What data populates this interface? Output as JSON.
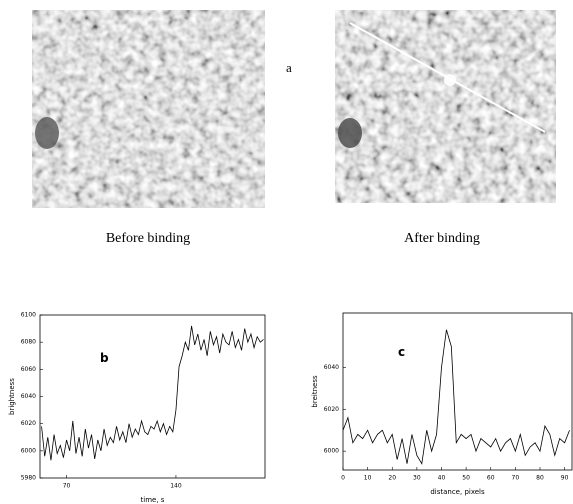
{
  "figure": {
    "label": "a",
    "captions": [
      "Before binding",
      "After binding"
    ]
  },
  "chart_data": [
    {
      "type": "line",
      "annotation": "b",
      "xlabel": "time, s",
      "ylabel": "brightness",
      "xlim": [
        53,
        197
      ],
      "ylim": [
        5980,
        6100
      ],
      "xticks": [
        70,
        140
      ],
      "yticks": [
        5980,
        6000,
        6020,
        6040,
        6060,
        6080,
        6100
      ],
      "color": "#000000",
      "x": [
        54,
        56,
        58,
        60,
        62,
        64,
        66,
        68,
        70,
        72,
        74,
        76,
        78,
        80,
        82,
        84,
        86,
        88,
        90,
        92,
        94,
        96,
        98,
        100,
        102,
        104,
        106,
        108,
        110,
        112,
        114,
        116,
        118,
        120,
        122,
        124,
        126,
        128,
        130,
        132,
        134,
        136,
        138,
        140,
        142,
        144,
        146,
        148,
        150,
        152,
        154,
        156,
        158,
        160,
        162,
        164,
        166,
        168,
        170,
        172,
        174,
        176,
        178,
        180,
        182,
        184,
        186,
        188,
        190,
        192,
        194,
        196
      ],
      "values": [
        6018,
        5996,
        6010,
        5993,
        6012,
        5998,
        6004,
        5995,
        6008,
        6000,
        6022,
        5998,
        6010,
        5996,
        6016,
        6002,
        6012,
        5994,
        6008,
        6000,
        6016,
        6004,
        6010,
        6006,
        6018,
        6008,
        6014,
        6006,
        6020,
        6010,
        6016,
        6012,
        6022,
        6014,
        6012,
        6018,
        6016,
        6022,
        6014,
        6020,
        6012,
        6018,
        6014,
        6030,
        6062,
        6070,
        6080,
        6074,
        6092,
        6078,
        6086,
        6074,
        6082,
        6070,
        6088,
        6078,
        6084,
        6072,
        6086,
        6080,
        6078,
        6088,
        6076,
        6082,
        6074,
        6090,
        6080,
        6086,
        6076,
        6084,
        6080,
        6082
      ]
    },
    {
      "type": "line",
      "annotation": "c",
      "xlabel": "distance, pixels",
      "ylabel": "breitness",
      "xlim": [
        0,
        93
      ],
      "ylim": [
        5991,
        6066
      ],
      "xticks": [
        0,
        10,
        20,
        30,
        40,
        50,
        60,
        70,
        80,
        90
      ],
      "yticks": [
        6000,
        6020,
        6040
      ],
      "color": "#000000",
      "x": [
        0,
        2,
        4,
        6,
        8,
        10,
        12,
        14,
        16,
        18,
        20,
        22,
        24,
        26,
        28,
        30,
        32,
        34,
        36,
        38,
        40,
        42,
        44,
        46,
        48,
        50,
        52,
        54,
        56,
        58,
        60,
        62,
        64,
        66,
        68,
        70,
        72,
        74,
        76,
        78,
        80,
        82,
        84,
        86,
        88,
        90,
        92
      ],
      "values": [
        6010,
        6016,
        6004,
        6008,
        6006,
        6010,
        6004,
        6008,
        6010,
        6004,
        6008,
        5996,
        6006,
        5994,
        6008,
        5998,
        5994,
        6010,
        6000,
        6008,
        6040,
        6058,
        6050,
        6004,
        6008,
        6006,
        6008,
        6000,
        6006,
        6004,
        6002,
        6006,
        6000,
        6004,
        6006,
        6000,
        6008,
        5998,
        6002,
        6004,
        6000,
        6012,
        6008,
        5998,
        6006,
        6004,
        6010
      ]
    }
  ]
}
